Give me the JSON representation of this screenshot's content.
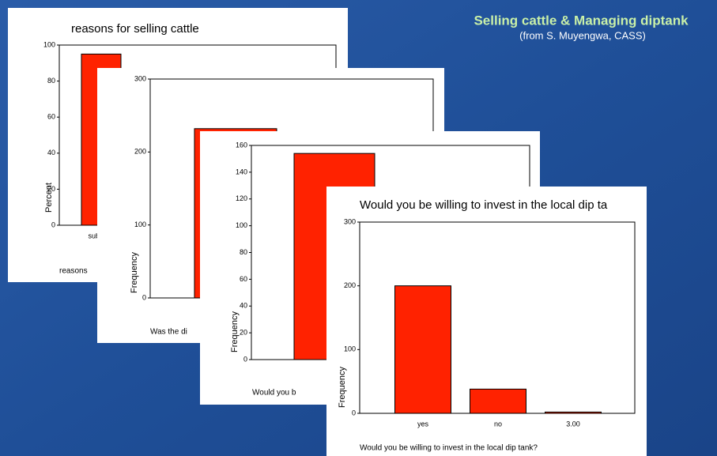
{
  "title": "Selling cattle & Managing diptank",
  "subtitle": "(from S. Muyengwa, CASS)",
  "chart_data": [
    {
      "type": "bar",
      "title": "reasons for selling cattle",
      "ylabel": "Percent",
      "xlabel": "reasons",
      "categories": [
        "subsiste"
      ],
      "values": [
        95
      ],
      "color": "#ff2200",
      "ylim": [
        0,
        100
      ],
      "yticks": [
        0,
        20,
        40,
        60,
        80,
        100
      ]
    },
    {
      "type": "bar",
      "ylabel": "Frequency",
      "xlabel": "Was the di",
      "categories": [
        null
      ],
      "values": [
        232
      ],
      "color": "#ff2200",
      "ylim": [
        0,
        300
      ],
      "yticks": [
        0,
        100,
        200,
        300
      ]
    },
    {
      "type": "bar",
      "ylabel": "Frequency",
      "xlabel": "Would you b",
      "categories": [
        null
      ],
      "values": [
        154
      ],
      "color": "#ff2200",
      "ylim": [
        0,
        160
      ],
      "yticks": [
        0,
        20,
        40,
        60,
        80,
        100,
        120,
        140,
        160
      ]
    },
    {
      "type": "bar",
      "title": "Would you be willing to invest in the local dip ta",
      "ylabel": "Frequency",
      "xlabel": "Would you be willing to invest in the local dip tank?",
      "categories": [
        "yes",
        "no",
        "3.00"
      ],
      "values": [
        200,
        38,
        2
      ],
      "color": "#ff2200",
      "ylim": [
        0,
        300
      ],
      "yticks": [
        0,
        100,
        200,
        300
      ]
    }
  ]
}
